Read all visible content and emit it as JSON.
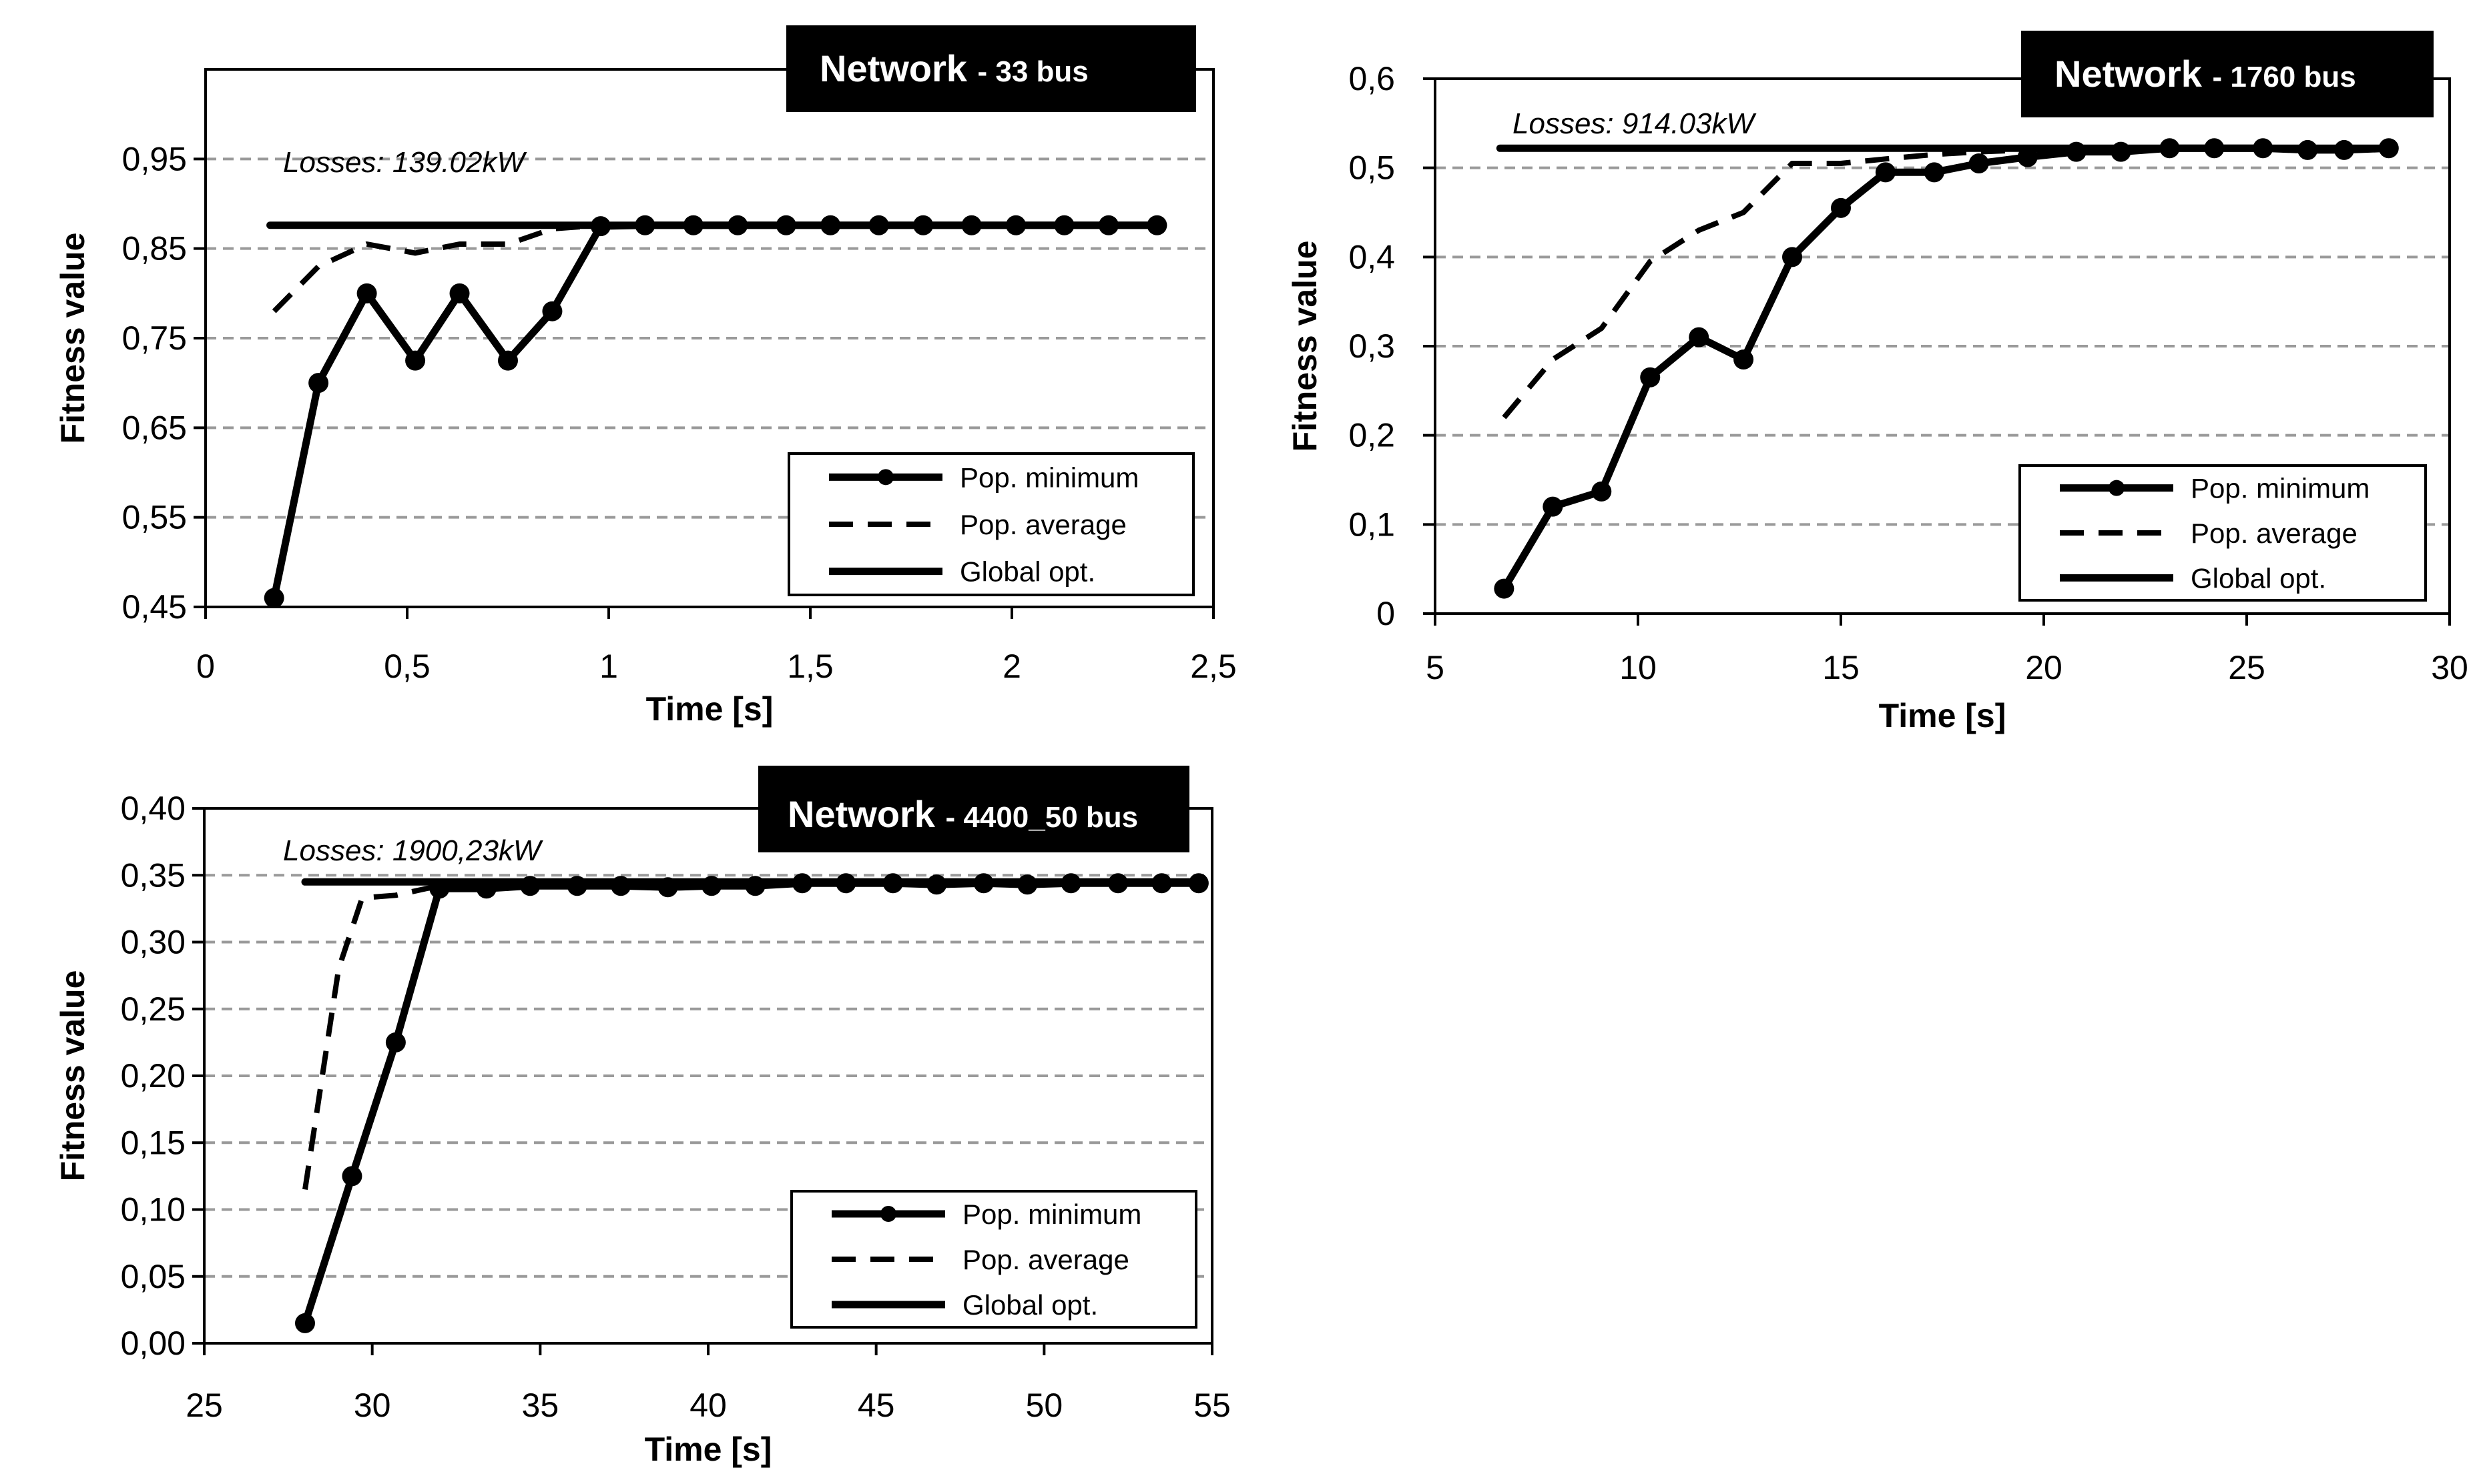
{
  "figure": {
    "legend_labels": [
      "Pop. minimum",
      "Pop. average",
      "Global opt."
    ],
    "line_color": "#000000",
    "grid_color": "#9a9a9a"
  },
  "chart_data": [
    {
      "type": "line",
      "title": "Network",
      "title_suffix": "- 33 bus",
      "annotation": "Losses: 139.02kW",
      "xlabel": "Time [s]",
      "ylabel": "Fitness value",
      "xlim": [
        0,
        2.5
      ],
      "ylim": [
        0.45,
        1.05
      ],
      "xticks": [
        "0",
        "0,5",
        "1",
        "1,5",
        "2",
        "2,5"
      ],
      "xtick_values": [
        0,
        0.5,
        1,
        1.5,
        2,
        2.5
      ],
      "yticks": [
        "0,45",
        "0,55",
        "0,65",
        "0,75",
        "0,85",
        "0,95"
      ],
      "ytick_values": [
        0.45,
        0.55,
        0.65,
        0.75,
        0.85,
        0.95
      ],
      "grid": "horizontal-dashed",
      "legend_position": "bottom-right",
      "series": [
        {
          "name": "Pop. minimum",
          "style": "solid-markers",
          "x": [
            0.17,
            0.28,
            0.4,
            0.52,
            0.63,
            0.75,
            0.86,
            0.98,
            1.09,
            1.21,
            1.32,
            1.44,
            1.55,
            1.67,
            1.78,
            1.9,
            2.01,
            2.13,
            2.24,
            2.36
          ],
          "y": [
            0.46,
            0.7,
            0.8,
            0.725,
            0.8,
            0.725,
            0.78,
            0.875,
            0.876,
            0.876,
            0.876,
            0.876,
            0.876,
            0.876,
            0.876,
            0.876,
            0.876,
            0.876,
            0.876,
            0.876
          ]
        },
        {
          "name": "Pop. average",
          "style": "dashed",
          "x": [
            0.17,
            0.28,
            0.4,
            0.52,
            0.63,
            0.75,
            0.86,
            0.98,
            1.09,
            1.21,
            1.32,
            1.44,
            1.55,
            1.67,
            1.78,
            1.9,
            2.01,
            2.13,
            2.24,
            2.36
          ],
          "y": [
            0.78,
            0.83,
            0.855,
            0.845,
            0.855,
            0.855,
            0.872,
            0.876,
            0.876,
            0.876,
            0.876,
            0.876,
            0.876,
            0.876,
            0.876,
            0.876,
            0.876,
            0.876,
            0.876,
            0.876
          ]
        },
        {
          "name": "Global opt.",
          "style": "solid",
          "x": [
            0.16,
            2.36
          ],
          "y": [
            0.876,
            0.876
          ]
        }
      ]
    },
    {
      "type": "line",
      "title": "Network",
      "title_suffix": "- 1760 bus",
      "annotation": "Losses: 914.03kW",
      "xlabel": "Time [s]",
      "ylabel": "Fitness value",
      "xlim": [
        5,
        30
      ],
      "ylim": [
        0,
        0.6
      ],
      "xticks": [
        "5",
        "10",
        "15",
        "20",
        "25",
        "30"
      ],
      "xtick_values": [
        5,
        10,
        15,
        20,
        25,
        30
      ],
      "yticks": [
        "0",
        "0,1",
        "0,2",
        "0,3",
        "0,4",
        "0,5",
        "0,6"
      ],
      "ytick_values": [
        0,
        0.1,
        0.2,
        0.3,
        0.4,
        0.5,
        0.6
      ],
      "grid": "horizontal-dashed",
      "legend_position": "bottom-right",
      "series": [
        {
          "name": "Pop. minimum",
          "style": "solid-markers",
          "x": [
            6.7,
            7.9,
            9.1,
            10.3,
            11.5,
            12.6,
            13.8,
            15.0,
            16.1,
            17.3,
            18.4,
            19.6,
            20.8,
            21.9,
            23.1,
            24.2,
            25.4,
            26.5,
            27.4,
            28.5
          ],
          "y": [
            0.028,
            0.12,
            0.137,
            0.265,
            0.31,
            0.285,
            0.4,
            0.455,
            0.495,
            0.495,
            0.505,
            0.512,
            0.518,
            0.518,
            0.522,
            0.522,
            0.522,
            0.52,
            0.52,
            0.522
          ]
        },
        {
          "name": "Pop. average",
          "style": "dashed",
          "x": [
            6.7,
            7.9,
            9.1,
            10.3,
            11.5,
            12.6,
            13.8,
            15.0,
            16.1,
            17.3,
            18.4,
            19.6,
            20.8,
            21.9,
            23.1,
            24.2,
            25.4,
            26.5,
            27.4,
            28.5
          ],
          "y": [
            0.22,
            0.285,
            0.32,
            0.395,
            0.43,
            0.45,
            0.505,
            0.505,
            0.51,
            0.515,
            0.518,
            0.52,
            0.52,
            0.521,
            0.521,
            0.522,
            0.522,
            0.522,
            0.522,
            0.522
          ]
        },
        {
          "name": "Global opt.",
          "style": "solid",
          "x": [
            6.6,
            28.5
          ],
          "y": [
            0.522,
            0.522
          ]
        }
      ]
    },
    {
      "type": "line",
      "title": "Network",
      "title_suffix": "- 4400_50 bus",
      "annotation": "Losses: 1900,23kW",
      "xlabel": "Time [s]",
      "ylabel": "Fitness value",
      "xlim": [
        25,
        55
      ],
      "ylim": [
        0,
        0.4
      ],
      "xticks": [
        "25",
        "30",
        "35",
        "40",
        "45",
        "50",
        "55"
      ],
      "xtick_values": [
        25,
        30,
        35,
        40,
        45,
        50,
        55
      ],
      "yticks": [
        "0,00",
        "0,05",
        "0,10",
        "0,15",
        "0,20",
        "0,25",
        "0,30",
        "0,35",
        "0,40"
      ],
      "ytick_values": [
        0,
        0.05,
        0.1,
        0.15,
        0.2,
        0.25,
        0.3,
        0.35,
        0.4
      ],
      "grid": "horizontal-dashed",
      "legend_position": "bottom-right",
      "series": [
        {
          "name": "Pop. minimum",
          "style": "solid-markers",
          "x": [
            28.0,
            29.4,
            30.7,
            32.0,
            33.4,
            34.7,
            36.1,
            37.4,
            38.8,
            40.1,
            41.4,
            42.8,
            44.1,
            45.5,
            46.8,
            48.2,
            49.5,
            50.8,
            52.2,
            53.5,
            54.6
          ],
          "y": [
            0.015,
            0.125,
            0.225,
            0.34,
            0.34,
            0.342,
            0.342,
            0.342,
            0.341,
            0.342,
            0.342,
            0.344,
            0.344,
            0.344,
            0.343,
            0.344,
            0.343,
            0.344,
            0.344,
            0.344,
            0.344
          ]
        },
        {
          "name": "Pop. average",
          "style": "dashed",
          "x": [
            28.0,
            29.0,
            29.7,
            30.7,
            31.6,
            32.5,
            34.0,
            40.0,
            48.0,
            54.6
          ],
          "y": [
            0.115,
            0.28,
            0.333,
            0.335,
            0.34,
            0.344,
            0.344,
            0.344,
            0.344,
            0.344
          ]
        },
        {
          "name": "Global opt.",
          "style": "solid",
          "x": [
            28.0,
            54.6
          ],
          "y": [
            0.345,
            0.345
          ]
        }
      ]
    }
  ]
}
